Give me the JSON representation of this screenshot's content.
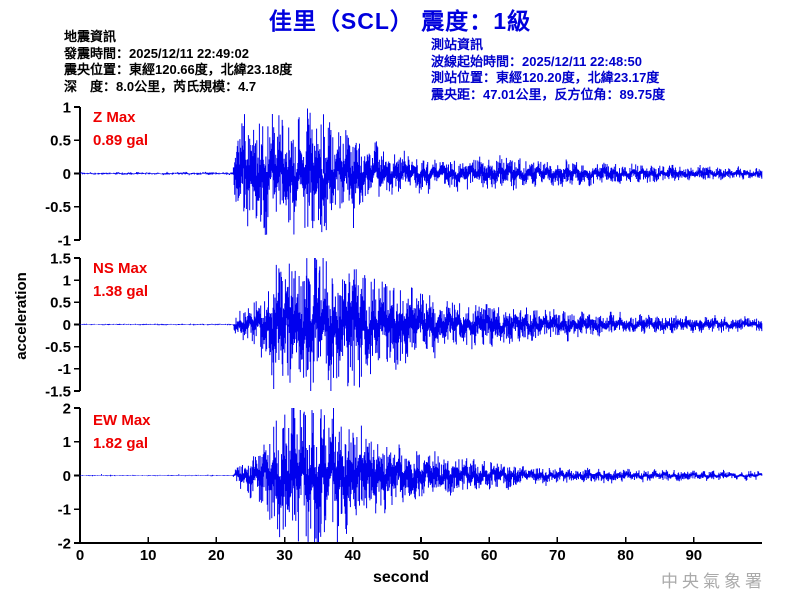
{
  "title": "佳里（SCL） 震度：1級",
  "info_left": {
    "lines": [
      "地震資訊",
      "發震時間：2025/12/11 22:49:02",
      "震央位置：東經120.66度，北緯23.18度",
      "深　度：8.0公里，芮氏規模：4.7"
    ]
  },
  "info_right": {
    "lines": [
      "測站資訊",
      "波線起始時間：2025/12/11 22:48:50",
      "測站位置：東經120.20度，北緯23.17度",
      "震央距：47.01公里，反方位角：89.75度"
    ]
  },
  "footer": {
    "agency": "中央氣象署"
  },
  "colors": {
    "title_blue": "#0000dd",
    "station_info_blue": "#0000cc",
    "trace_blue": "#0000ee",
    "max_label_red": "#ee0000",
    "axis_black": "#000000",
    "agency_gray": "#aaaaaa"
  },
  "chart_data": {
    "type": "line",
    "title": "佳里（SCL） 震度：1級",
    "xlabel": "second",
    "ylabel": "acceleration",
    "x_range": [
      0,
      100
    ],
    "x_ticks": [
      0,
      10,
      20,
      30,
      40,
      50,
      60,
      70,
      80,
      90
    ],
    "grid": false,
    "panels": [
      {
        "channel": "Z",
        "max_label": "Z Max",
        "max_text": "0.89 gal",
        "max_gal": 0.89,
        "max_time_s": 35.7,
        "ylim": [
          -1,
          1
        ],
        "yticks": [
          1,
          0.5,
          0,
          -0.5,
          -1
        ],
        "onset_s": 22.5,
        "envelope": [
          [
            0,
            0.012
          ],
          [
            22.4,
            0.015
          ],
          [
            23,
            0.5
          ],
          [
            26,
            0.55
          ],
          [
            30,
            0.5
          ],
          [
            34,
            0.58
          ],
          [
            36,
            0.55
          ],
          [
            38,
            0.42
          ],
          [
            40,
            0.38
          ],
          [
            43,
            0.28
          ],
          [
            46,
            0.2
          ],
          [
            50,
            0.17
          ],
          [
            55,
            0.14
          ],
          [
            60,
            0.16
          ],
          [
            64,
            0.15
          ],
          [
            68,
            0.13
          ],
          [
            72,
            0.12
          ],
          [
            76,
            0.1
          ],
          [
            80,
            0.09
          ],
          [
            85,
            0.08
          ],
          [
            90,
            0.07
          ],
          [
            95,
            0.06
          ],
          [
            100,
            0.05
          ]
        ],
        "spikes": [
          [
            26.3,
            0.75
          ],
          [
            30.8,
            -0.7
          ],
          [
            33.4,
            -0.8
          ],
          [
            35.7,
            0.89
          ],
          [
            40.1,
            -0.82
          ]
        ]
      },
      {
        "channel": "NS",
        "max_label": "NS Max",
        "max_text": "1.38 gal",
        "max_gal": 1.38,
        "max_time_s": 40.2,
        "ylim": [
          -1.5,
          1.5
        ],
        "yticks": [
          1.5,
          1,
          0.5,
          0,
          -0.5,
          -1,
          -1.5
        ],
        "onset_s": 22.5,
        "envelope": [
          [
            0,
            0.01
          ],
          [
            22.4,
            0.012
          ],
          [
            23,
            0.18
          ],
          [
            24.5,
            0.25
          ],
          [
            26,
            0.4
          ],
          [
            27.5,
            0.65
          ],
          [
            29,
            0.95
          ],
          [
            30.5,
            1.0
          ],
          [
            32,
            0.85
          ],
          [
            34,
            1.0
          ],
          [
            36,
            0.9
          ],
          [
            38,
            0.9
          ],
          [
            40,
            1.0
          ],
          [
            42,
            0.75
          ],
          [
            44,
            0.65
          ],
          [
            46,
            0.6
          ],
          [
            48,
            0.55
          ],
          [
            50,
            0.48
          ],
          [
            53,
            0.4
          ],
          [
            56,
            0.33
          ],
          [
            60,
            0.3
          ],
          [
            64,
            0.26
          ],
          [
            68,
            0.22
          ],
          [
            72,
            0.2
          ],
          [
            76,
            0.17
          ],
          [
            80,
            0.15
          ],
          [
            85,
            0.13
          ],
          [
            90,
            0.12
          ],
          [
            95,
            0.11
          ],
          [
            100,
            0.1
          ]
        ],
        "spikes": [
          [
            30.5,
            -1.15
          ],
          [
            33.2,
            1.1
          ],
          [
            35.1,
            1.22
          ],
          [
            40.2,
            -1.38
          ],
          [
            41.5,
            1.05
          ]
        ]
      },
      {
        "channel": "EW",
        "max_label": "EW Max",
        "max_text": "1.82 gal",
        "max_gal": 1.82,
        "max_time_s": 35.3,
        "ylim": [
          -2,
          2
        ],
        "yticks": [
          2,
          1,
          0,
          -1,
          -2
        ],
        "onset_s": 22.5,
        "envelope": [
          [
            0,
            0.01
          ],
          [
            22.4,
            0.012
          ],
          [
            23,
            0.2
          ],
          [
            24.5,
            0.3
          ],
          [
            26,
            0.5
          ],
          [
            27.5,
            0.8
          ],
          [
            29,
            1.15
          ],
          [
            30.5,
            1.4
          ],
          [
            32,
            1.3
          ],
          [
            33.5,
            1.2
          ],
          [
            35,
            1.35
          ],
          [
            36.5,
            1.15
          ],
          [
            38,
            1.3
          ],
          [
            39.5,
            1.0
          ],
          [
            41,
            0.85
          ],
          [
            43,
            0.7
          ],
          [
            45,
            0.6
          ],
          [
            47,
            0.55
          ],
          [
            49,
            0.5
          ],
          [
            51,
            0.45
          ],
          [
            54,
            0.38
          ],
          [
            57,
            0.32
          ],
          [
            60,
            0.27
          ],
          [
            63,
            0.22
          ],
          [
            66,
            0.18
          ],
          [
            69,
            0.16
          ],
          [
            72,
            0.14
          ],
          [
            76,
            0.13
          ],
          [
            80,
            0.12
          ],
          [
            85,
            0.11
          ],
          [
            90,
            0.1
          ],
          [
            95,
            0.09
          ],
          [
            100,
            0.08
          ]
        ],
        "spikes": [
          [
            29.8,
            -1.6
          ],
          [
            31.5,
            1.7
          ],
          [
            35.3,
            -1.82
          ],
          [
            37.9,
            -1.5
          ],
          [
            38.3,
            1.45
          ]
        ]
      }
    ]
  }
}
